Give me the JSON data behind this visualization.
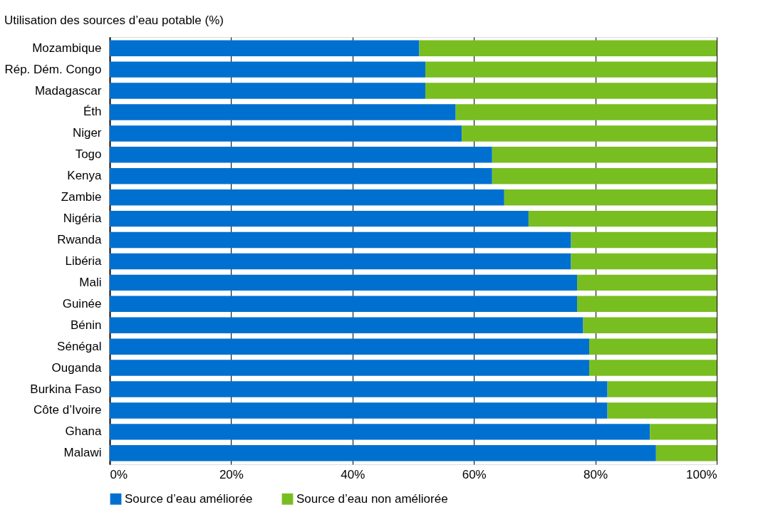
{
  "chart_data": {
    "type": "bar",
    "orientation": "horizontal",
    "stacked": true,
    "title": "Utilisation des sources d’eau potable (%)",
    "categories": [
      "Mozambique",
      "Rép. Dém. Congo",
      "Madagascar",
      "Éth",
      "Niger",
      "Togo",
      "Kenya",
      "Zambie",
      "Nigéria",
      "Rwanda",
      "Libéria",
      "Mali",
      "Guinée",
      "Bénin",
      "Sénégal",
      "Ouganda",
      "Burkina Faso",
      "Côte d’Ivoire",
      "Ghana",
      "Malawi"
    ],
    "series": [
      {
        "name": "Source d’eau améliorée",
        "color": "#0070d0",
        "values": [
          51,
          52,
          52,
          57,
          58,
          63,
          63,
          65,
          69,
          76,
          76,
          77,
          77,
          78,
          79,
          79,
          82,
          82,
          89,
          90
        ]
      },
      {
        "name": "Source d’eau non améliorée",
        "color": "#78be20",
        "values": [
          49,
          48,
          48,
          43,
          42,
          37,
          37,
          35,
          31,
          24,
          24,
          23,
          23,
          22,
          21,
          21,
          18,
          18,
          11,
          10
        ]
      }
    ],
    "xlim": [
      0,
      100
    ],
    "xticks": [
      {
        "value": 0,
        "label": "0%"
      },
      {
        "value": 20,
        "label": "20%"
      },
      {
        "value": 40,
        "label": "40%"
      },
      {
        "value": 60,
        "label": "60%"
      },
      {
        "value": 80,
        "label": "80%"
      },
      {
        "value": 100,
        "label": "100%"
      }
    ],
    "grid": "x",
    "legend": "bottom"
  }
}
